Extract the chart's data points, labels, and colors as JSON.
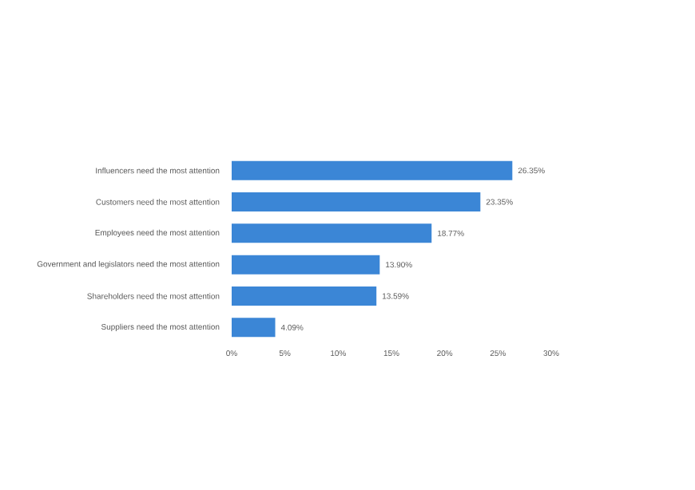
{
  "chart_data": {
    "type": "bar",
    "orientation": "horizontal",
    "categories": [
      "Influencers need the most attention",
      "Customers need the most attention",
      "Employees need the most attention",
      "Government and legislators need the most attention",
      "Shareholders need the most attention",
      "Suppliers need the most attention"
    ],
    "values": [
      26.35,
      23.35,
      18.77,
      13.9,
      13.59,
      4.09
    ],
    "value_labels": [
      "26.35%",
      "23.35%",
      "18.77%",
      "13.90%",
      "13.59%",
      "4.09%"
    ],
    "color": "#3b86d6",
    "xlim": [
      0,
      30
    ],
    "xticks": [
      {
        "value": 0,
        "label": "0%"
      },
      {
        "value": 5,
        "label": "5%"
      },
      {
        "value": 10,
        "label": "10%"
      },
      {
        "value": 15,
        "label": "15%"
      },
      {
        "value": 20,
        "label": "20%"
      },
      {
        "value": 25,
        "label": "25%"
      },
      {
        "value": 30,
        "label": "30%"
      }
    ],
    "grid": false
  }
}
